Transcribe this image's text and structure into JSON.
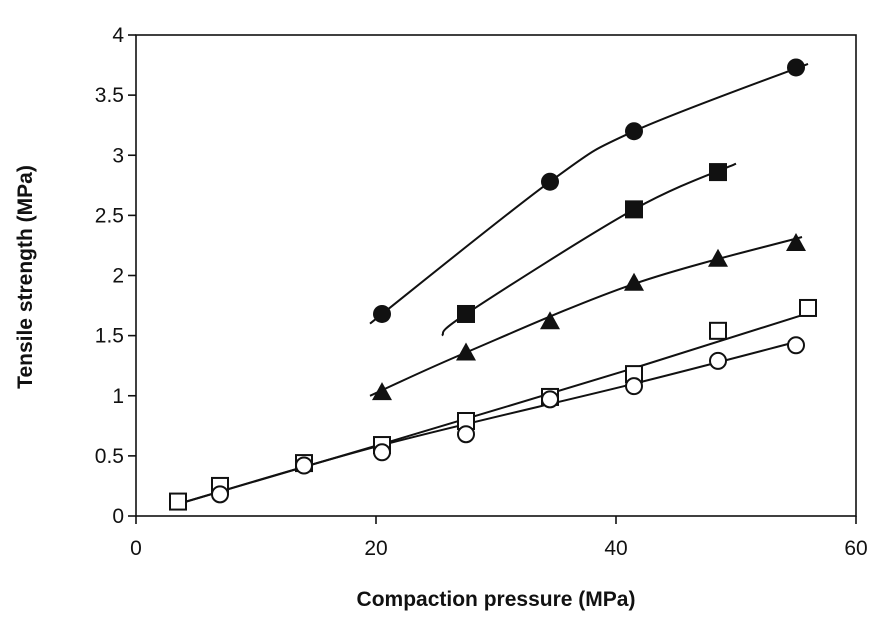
{
  "chart_data": {
    "type": "scatter",
    "title": "",
    "xlabel": "Compaction pressure (MPa)",
    "ylabel": "Tensile strength (MPa)",
    "xlim": [
      0,
      60
    ],
    "ylim": [
      0,
      4
    ],
    "x_ticks": [
      "0",
      "20",
      "40",
      "60"
    ],
    "y_ticks": [
      "0",
      "0.5",
      "1",
      "1.5",
      "2",
      "2.5",
      "3",
      "3.5",
      "4"
    ],
    "grid": false,
    "legend": "none",
    "series": [
      {
        "marker": "filled-circle",
        "points": [
          [
            20.5,
            1.68
          ],
          [
            34.5,
            2.78
          ],
          [
            41.5,
            3.2
          ],
          [
            55,
            3.73
          ]
        ],
        "curve": [
          [
            19.5,
            1.6
          ],
          [
            34.5,
            2.78
          ],
          [
            41.5,
            3.2
          ],
          [
            56,
            3.76
          ]
        ]
      },
      {
        "marker": "filled-square",
        "points": [
          [
            27.5,
            1.68
          ],
          [
            41.5,
            2.55
          ],
          [
            48.5,
            2.86
          ]
        ],
        "curve": [
          [
            25.5,
            1.5
          ],
          [
            27.5,
            1.68
          ],
          [
            41.5,
            2.55
          ],
          [
            50,
            2.93
          ]
        ]
      },
      {
        "marker": "filled-triangle",
        "points": [
          [
            20.5,
            1.03
          ],
          [
            27.5,
            1.36
          ],
          [
            34.5,
            1.62
          ],
          [
            41.5,
            1.94
          ],
          [
            48.5,
            2.14
          ],
          [
            55,
            2.27
          ]
        ],
        "curve": [
          [
            19.5,
            1.0
          ],
          [
            27.5,
            1.36
          ],
          [
            41.5,
            1.93
          ],
          [
            55.5,
            2.32
          ]
        ]
      },
      {
        "marker": "open-square",
        "points": [
          [
            3.5,
            0.12
          ],
          [
            7,
            0.25
          ],
          [
            14,
            0.44
          ],
          [
            20.5,
            0.59
          ],
          [
            27.5,
            0.79
          ],
          [
            34.5,
            0.99
          ],
          [
            41.5,
            1.18
          ],
          [
            48.5,
            1.54
          ],
          [
            56,
            1.73
          ]
        ],
        "curve": [
          [
            3.5,
            0.1
          ],
          [
            20.5,
            0.6
          ],
          [
            41.5,
            1.23
          ],
          [
            55.5,
            1.67
          ]
        ]
      },
      {
        "marker": "open-circle",
        "points": [
          [
            7,
            0.18
          ],
          [
            14,
            0.42
          ],
          [
            20.5,
            0.53
          ],
          [
            27.5,
            0.68
          ],
          [
            34.5,
            0.97
          ],
          [
            41.5,
            1.08
          ],
          [
            48.5,
            1.29
          ],
          [
            55,
            1.42
          ]
        ],
        "curve": [
          [
            3.5,
            0.1
          ],
          [
            20.5,
            0.59
          ],
          [
            41.5,
            1.1
          ],
          [
            55.5,
            1.46
          ]
        ]
      }
    ]
  }
}
